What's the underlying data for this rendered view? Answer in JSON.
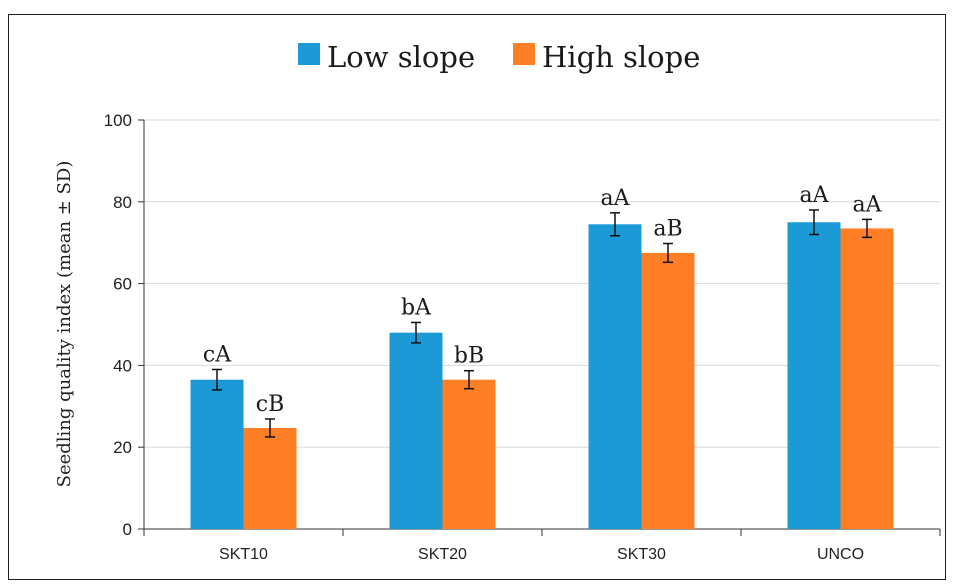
{
  "chart_data": {
    "type": "bar",
    "categories": [
      "SKT10",
      "SKT20",
      "SKT30",
      "UNCO"
    ],
    "series": [
      {
        "name": "Low slope",
        "color": "#1b9ad6",
        "values": [
          36.5,
          48.0,
          74.5,
          75.0
        ],
        "errors": [
          2.5,
          2.5,
          2.8,
          3.0
        ],
        "letters": [
          "cA",
          "bA",
          "aA",
          "aA"
        ]
      },
      {
        "name": "High slope",
        "color": "#ff7f27",
        "values": [
          24.7,
          36.5,
          67.5,
          73.5
        ],
        "errors": [
          2.2,
          2.2,
          2.3,
          2.2
        ],
        "letters": [
          "cB",
          "bB",
          "aB",
          "aA"
        ]
      }
    ],
    "ylabel": "Seedling quality index (mean ± SD)",
    "xlabel": "",
    "ylim": [
      0,
      100
    ],
    "yticks": [
      0,
      20,
      40,
      60,
      80,
      100
    ],
    "grid": true,
    "legend_position": "top"
  }
}
